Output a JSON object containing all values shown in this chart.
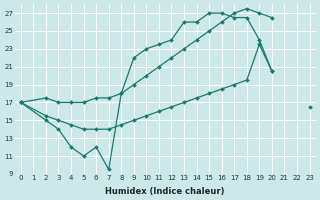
{
  "title": "",
  "xlabel": "Humidex (Indice chaleur)",
  "ylabel": "",
  "background_color": "#cce8e8",
  "grid_color": "#ffffff",
  "line_color": "#1a7a6e",
  "ylim": [
    9,
    28
  ],
  "xlim": [
    -0.5,
    23.5
  ],
  "yticks": [
    9,
    11,
    13,
    15,
    17,
    19,
    21,
    23,
    25,
    27
  ],
  "xticks": [
    0,
    1,
    2,
    3,
    4,
    5,
    6,
    7,
    8,
    9,
    10,
    11,
    12,
    13,
    14,
    15,
    16,
    17,
    18,
    19,
    20,
    21,
    22,
    23
  ],
  "series": [
    {
      "x": [
        0,
        2,
        3,
        4,
        5,
        6,
        7,
        8,
        9,
        10,
        11,
        12,
        13,
        14,
        15,
        16,
        17,
        18,
        19,
        20
      ],
      "y": [
        17,
        15,
        14,
        12,
        11,
        12,
        9.5,
        18,
        22,
        23,
        23.5,
        24,
        26,
        26,
        27,
        27,
        26.5,
        26.5,
        24,
        20.5
      ]
    },
    {
      "x": [
        0,
        2,
        3,
        4,
        5,
        6,
        7,
        8,
        9,
        10,
        11,
        12,
        13,
        14,
        15,
        16,
        17,
        18,
        19,
        20,
        22,
        23
      ],
      "y": [
        17,
        17.5,
        17,
        17,
        17,
        17.5,
        17.5,
        18,
        19,
        20,
        21,
        22,
        23,
        24,
        25,
        26,
        27,
        27.5,
        27,
        26.5,
        null,
        null
      ]
    },
    {
      "x": [
        0,
        2,
        3,
        4,
        5,
        6,
        7,
        8,
        9,
        10,
        11,
        12,
        13,
        14,
        15,
        16,
        17,
        18,
        19,
        20,
        22,
        23
      ],
      "y": [
        17,
        15.5,
        15,
        14.5,
        14,
        14,
        14,
        14.5,
        15,
        15.5,
        16,
        16.5,
        17,
        17.5,
        18,
        18.5,
        19,
        19.5,
        23.5,
        20.5,
        null,
        16.5
      ]
    }
  ]
}
